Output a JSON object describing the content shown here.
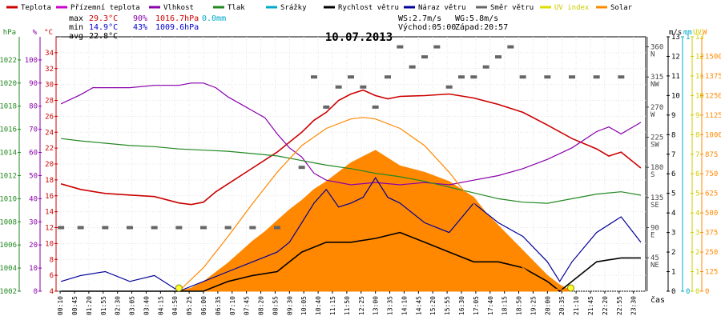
{
  "chart_data": {
    "type": "line",
    "title": "10.07.2013",
    "xlabel": "čas",
    "legend": {
      "position": "top",
      "items": [
        {
          "label": "Teplota",
          "color": "#cc0000"
        },
        {
          "label": "Přízemní teplota",
          "color": "#cc00cc"
        },
        {
          "label": "Vlhkost",
          "color": "#8800aa"
        },
        {
          "label": "Tlak",
          "color": "#228822"
        },
        {
          "label": "Srážky",
          "color": "#00aacc"
        },
        {
          "label": "Rychlost větru",
          "color": "#000000"
        },
        {
          "label": "Náraz větru",
          "color": "#000099"
        },
        {
          "label": "Směr větru",
          "color": "#666666"
        },
        {
          "label": "UV index",
          "color": "#dddd00"
        },
        {
          "label": "Solar",
          "color": "#ff8800"
        }
      ]
    },
    "stats": {
      "max_label": "max",
      "max_temp": "29.3°C",
      "max_hum": "90%",
      "max_press": "1016.7hPa",
      "rain": "0.0mm",
      "min_label": "min",
      "min_temp": "14.9°C",
      "min_hum": "43%",
      "min_press": "1009.6hPa",
      "avg_label": "avg",
      "avg_temp": "22.8°C",
      "ws": "WS:2.7m/s",
      "wg": "WG:5.8m/s",
      "sunrise": "Východ:05:00",
      "sunset": "Západ:20:57"
    },
    "axes": {
      "pressure": {
        "unit": "hPa",
        "range": [
          1002,
          1024
        ],
        "ticks": [
          1002,
          1004,
          1006,
          1008,
          1010,
          1012,
          1014,
          1016,
          1018,
          1020,
          1022
        ],
        "color": "#228822"
      },
      "humidity": {
        "unit": "%",
        "range": [
          0,
          110
        ],
        "ticks": [
          0,
          10,
          20,
          30,
          40,
          50,
          60,
          70,
          80,
          90,
          100
        ],
        "color": "#8800aa"
      },
      "temperature": {
        "unit": "°C",
        "range": [
          4,
          36
        ],
        "ticks": [
          4,
          6,
          8,
          10,
          12,
          14,
          16,
          18,
          20,
          22,
          24,
          26,
          28,
          30,
          32,
          34
        ],
        "color": "#cc0000"
      },
      "direction": {
        "unit": "°",
        "range": [
          -5,
          375
        ],
        "ticks": [
          45,
          90,
          135,
          180,
          225,
          270,
          315,
          360
        ],
        "labels": [
          "NE",
          "E",
          "SE",
          "S",
          "SW",
          "W",
          "NW",
          "N"
        ],
        "color": "#444444"
      },
      "wind": {
        "unit": "m/s",
        "range": [
          0,
          13
        ],
        "ticks": [
          0,
          1,
          2,
          3,
          4,
          5,
          6,
          7,
          8,
          9,
          10,
          11,
          12,
          13
        ],
        "color": "#000000"
      },
      "rain": {
        "unit": "mm",
        "range": [
          0,
          1
        ],
        "ticks": [
          0,
          1
        ],
        "color": "#00aacc"
      },
      "uv": {
        "unit": "UV",
        "range": [
          0,
          13
        ],
        "ticks": [
          0,
          1,
          2,
          3,
          4,
          5,
          6,
          7,
          8,
          9,
          10,
          11,
          12,
          13
        ],
        "color": "#cccc00"
      },
      "solar": {
        "unit": "W",
        "range": [
          0,
          1625
        ],
        "ticks": [
          0,
          125,
          250,
          375,
          500,
          625,
          750,
          875,
          1000,
          1125,
          1250,
          1375,
          1500
        ],
        "color": "#ff8800"
      }
    },
    "x_ticks": [
      "00:10",
      "00:45",
      "01:20",
      "01:55",
      "02:30",
      "03:05",
      "03:40",
      "04:15",
      "04:50",
      "05:25",
      "06:00",
      "06:35",
      "07:10",
      "07:45",
      "08:20",
      "08:55",
      "09:30",
      "10:05",
      "10:40",
      "11:15",
      "11:50",
      "12:25",
      "13:00",
      "13:35",
      "14:10",
      "14:45",
      "15:20",
      "15:55",
      "16:30",
      "17:05",
      "17:40",
      "18:15",
      "18:50",
      "19:25",
      "20:00",
      "20:35",
      "21:10",
      "21:45",
      "22:20",
      "22:55",
      "23:30"
    ],
    "series": [
      {
        "name": "Teplota",
        "axis": "temperature",
        "color": "#cc0000",
        "x": [
          0.2,
          1,
          2,
          3,
          4,
          5,
          5.5,
          6,
          6.5,
          7,
          8,
          9,
          10,
          10.5,
          11,
          11.5,
          12,
          12.5,
          13,
          13.5,
          14,
          15,
          16,
          17,
          18,
          19,
          20,
          21,
          22,
          22.5,
          23,
          23.8
        ],
        "values": [
          17.5,
          16.8,
          16.3,
          16.1,
          15.9,
          15.1,
          14.9,
          15.2,
          16.5,
          17.5,
          19.5,
          21.5,
          24,
          25.5,
          26.5,
          28,
          28.8,
          29.3,
          28.6,
          28.2,
          28.5,
          28.6,
          28.8,
          28.3,
          27.5,
          26.5,
          24.9,
          23.2,
          21.9,
          21,
          21.5,
          19.5
        ]
      },
      {
        "name": "Vlhkost",
        "axis": "humidity",
        "color": "#8800aa",
        "x": [
          0.2,
          1,
          1.5,
          2,
          3,
          4,
          5,
          5.5,
          6,
          6.5,
          7,
          7.5,
          8,
          8.5,
          9,
          9.5,
          10,
          10.5,
          11,
          11.5,
          12,
          13,
          14,
          15,
          16,
          17,
          18,
          19,
          20,
          21,
          22,
          22.5,
          23,
          23.8
        ],
        "values": [
          81,
          85,
          88,
          88,
          88,
          89,
          89,
          90,
          90,
          88,
          84,
          81,
          78,
          75,
          68,
          62,
          58,
          51,
          48,
          47,
          46,
          47,
          46,
          47,
          46,
          48,
          50,
          53,
          57,
          62,
          69,
          71,
          68,
          73
        ]
      },
      {
        "name": "Tlak",
        "axis": "pressure",
        "color": "#228822",
        "x": [
          0.2,
          1,
          2,
          3,
          4,
          5,
          6,
          7,
          8,
          9,
          10,
          11,
          12,
          13,
          14,
          15,
          16,
          17,
          18,
          19,
          20,
          21,
          22,
          23,
          23.8
        ],
        "values": [
          1015.2,
          1015.0,
          1014.8,
          1014.6,
          1014.5,
          1014.3,
          1014.2,
          1014.1,
          1013.9,
          1013.7,
          1013.3,
          1012.9,
          1012.6,
          1012.2,
          1011.9,
          1011.5,
          1011.0,
          1010.5,
          1010.0,
          1009.7,
          1009.6,
          1010.0,
          1010.4,
          1010.6,
          1010.3
        ]
      },
      {
        "name": "Rychlost větru",
        "axis": "wind",
        "color": "#000000",
        "x": [
          0.2,
          1,
          2,
          3,
          4,
          5,
          6,
          7,
          8,
          9,
          9.5,
          10,
          11,
          12,
          13,
          14,
          15,
          16,
          17,
          18,
          19,
          20,
          20.5,
          21,
          22,
          23,
          23.8
        ],
        "values": [
          0,
          0,
          0,
          0,
          0,
          0,
          0,
          0.5,
          0.8,
          1,
          1.5,
          2,
          2.5,
          2.5,
          2.7,
          3,
          2.5,
          2,
          1.5,
          1.5,
          1.2,
          0.5,
          0,
          0.5,
          1.5,
          1.7,
          1.7
        ]
      },
      {
        "name": "Náraz větru",
        "axis": "wind",
        "color": "#000099",
        "x": [
          0.2,
          1,
          2,
          3,
          4,
          5,
          6,
          7,
          8,
          9,
          9.5,
          10,
          10.5,
          11,
          11.5,
          12,
          12.5,
          13,
          13.5,
          14,
          15,
          16,
          17,
          18,
          19,
          20,
          20.5,
          21,
          22,
          23,
          23.8
        ],
        "values": [
          0.5,
          0.8,
          1,
          0.5,
          0.8,
          0,
          0.5,
          1,
          1.5,
          2,
          2.5,
          3.5,
          4.5,
          5.2,
          4.3,
          4.5,
          4.8,
          5.8,
          4.8,
          4.5,
          3.5,
          3,
          4.5,
          3.5,
          2.8,
          1.5,
          0.5,
          1.5,
          3,
          3.8,
          2.5
        ]
      },
      {
        "name": "Solar",
        "axis": "solar",
        "color": "#ff8800",
        "fill": true,
        "x": [
          5,
          5.5,
          6,
          6.5,
          7,
          7.5,
          8,
          8.5,
          9,
          9.5,
          10,
          10.5,
          11,
          11.5,
          12,
          12.5,
          13,
          13.5,
          14,
          15,
          16,
          17,
          17.5,
          18,
          18.5,
          19,
          19.5,
          20,
          20.5,
          21
        ],
        "values": [
          0,
          20,
          60,
          120,
          180,
          250,
          320,
          380,
          450,
          520,
          580,
          650,
          700,
          760,
          820,
          860,
          900,
          850,
          800,
          760,
          700,
          600,
          500,
          420,
          340,
          260,
          180,
          100,
          40,
          0
        ]
      },
      {
        "name": "Solar max",
        "axis": "solar",
        "color": "#ff8800",
        "fill": false,
        "x": [
          5,
          6,
          7,
          8,
          9,
          10,
          11,
          12,
          12.5,
          13,
          14,
          15,
          16,
          17,
          18,
          19,
          20,
          21
        ],
        "values": [
          0,
          150,
          350,
          560,
          760,
          930,
          1040,
          1100,
          1110,
          1100,
          1040,
          930,
          760,
          560,
          350,
          150,
          20,
          0
        ]
      },
      {
        "name": "Směr větru",
        "axis": "direction",
        "color": "#666666",
        "type": "scatter",
        "x": [
          0.2,
          1,
          2,
          3,
          4,
          5,
          6,
          7,
          8,
          9,
          10,
          10.5,
          11,
          11.5,
          12,
          12.5,
          13,
          13.5,
          14,
          14.5,
          15,
          15.5,
          16,
          16.5,
          17,
          17.5,
          18,
          18.5,
          19,
          20,
          21,
          22,
          23
        ],
        "values": [
          90,
          90,
          90,
          90,
          90,
          90,
          90,
          90,
          90,
          90,
          180,
          315,
          270,
          300,
          315,
          300,
          270,
          315,
          360,
          330,
          345,
          360,
          300,
          315,
          315,
          330,
          345,
          360,
          315,
          315,
          315,
          315,
          315
        ]
      }
    ],
    "sun_markers": [
      {
        "label": "sunrise",
        "x": 5.0
      },
      {
        "label": "sunset",
        "x": 20.95
      }
    ]
  }
}
